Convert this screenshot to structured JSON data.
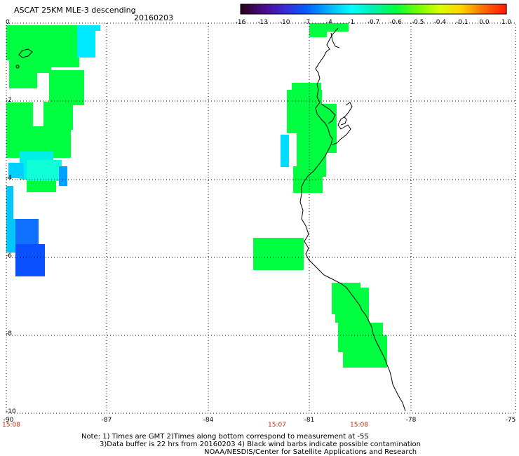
{
  "header": {
    "title": "ASCAT 25KM MLE-3 descending",
    "date": "20160203"
  },
  "colorbar": {
    "labels": [
      "-16",
      "-13",
      "-10",
      "-7",
      "-4",
      "-1",
      "-0.7",
      "-0.6",
      "-0.5",
      "-0.4",
      "-0.1",
      "0.0",
      "1.0"
    ],
    "colors": [
      "#2a0018",
      "#4a0a8a",
      "#3a2ad8",
      "#0060ff",
      "#00b4ff",
      "#00ffff",
      "#00f0b0",
      "#00ff40",
      "#70ff00",
      "#d8ff00",
      "#ffd400",
      "#ff6a00",
      "#ff1a00"
    ]
  },
  "axes": {
    "lon_labels": [
      "-90",
      "-87",
      "-84",
      "-81",
      "-78",
      "-75"
    ],
    "lat_labels": [
      "0",
      "-2",
      "-4",
      "-6",
      "-8",
      "-10"
    ],
    "time_labels": [
      "15:08",
      "15:07",
      "15:08"
    ]
  },
  "notes": {
    "line1": "Note: 1) Times are GMT 2)Times along bottom correspond to measurement at -5S",
    "line2": "3)Data buffer is 22 hrs from 20160203 4) Black wind barbs indicate possible contamination",
    "line3": "NOAA/NESDIS/Center for Satellite Applications and Research"
  },
  "colors": {
    "green": "#00ff40",
    "cyan": "#00e8ff",
    "blue": "#0050ff",
    "time_label": "#cc2200"
  }
}
